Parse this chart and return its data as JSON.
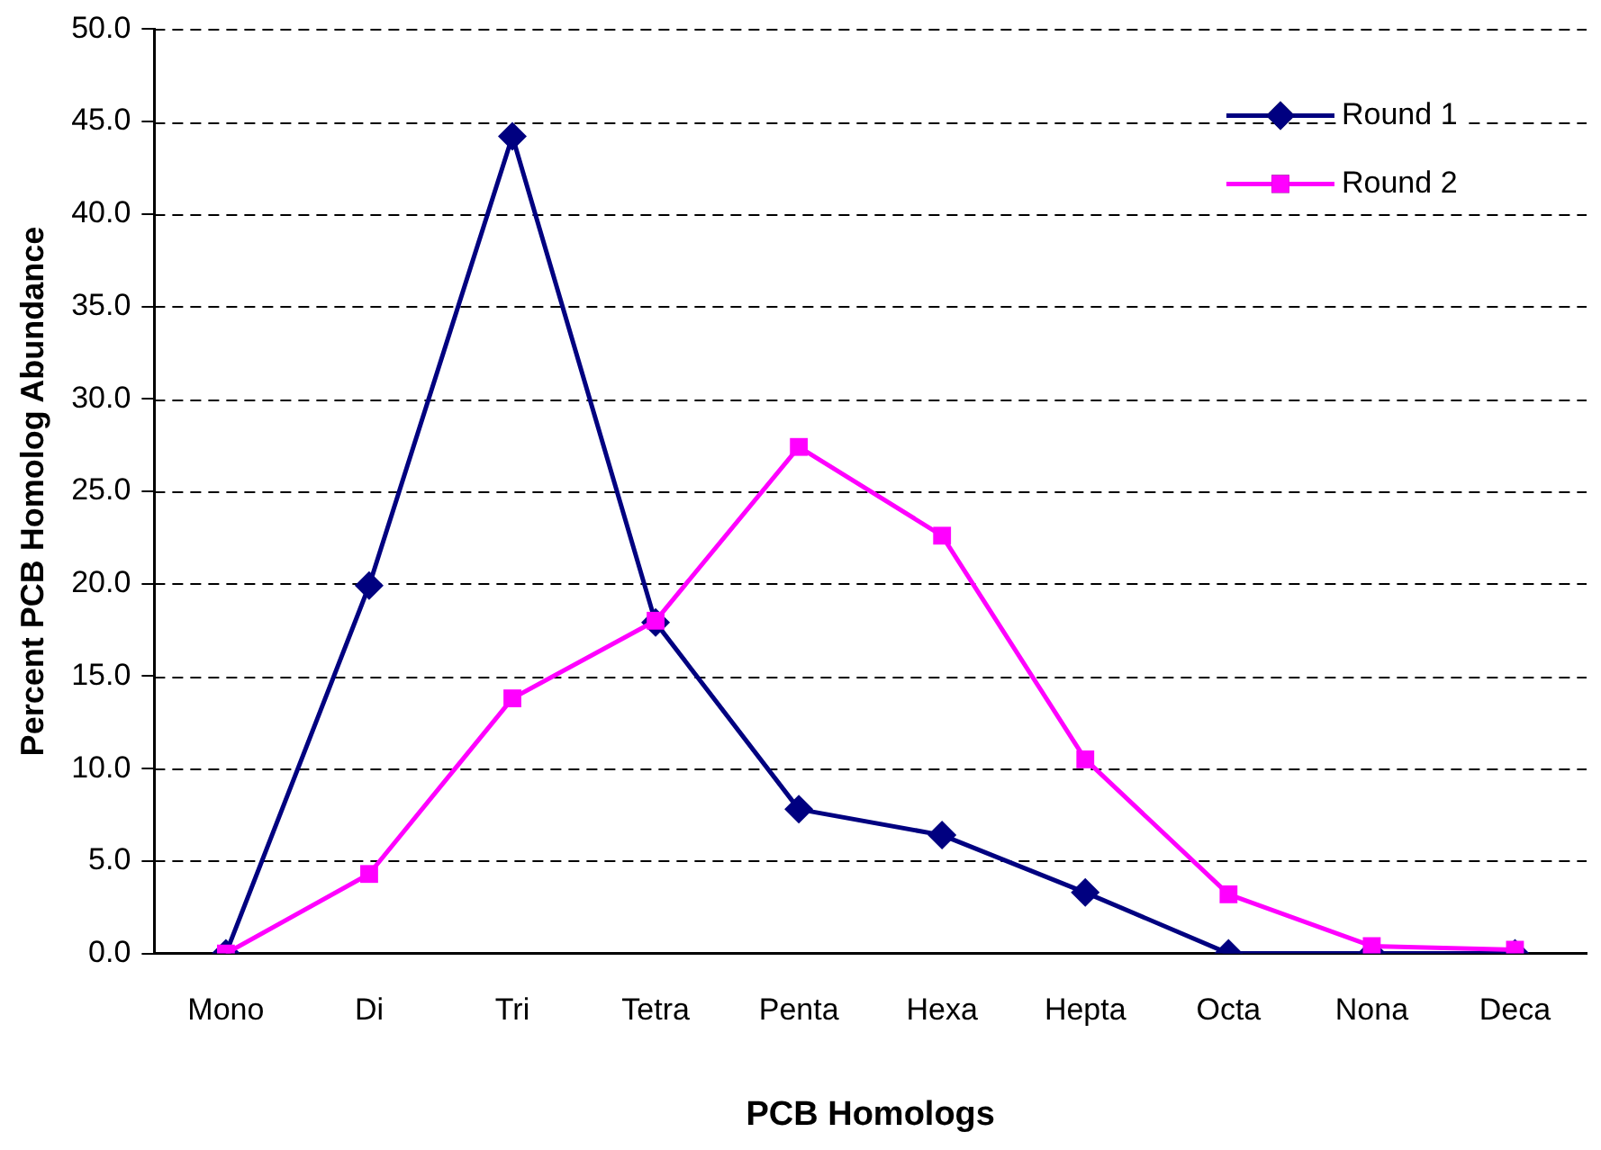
{
  "chart_data": {
    "type": "line",
    "xlabel": "PCB Homologs",
    "ylabel": "Percent PCB Homolog Abundance",
    "categories": [
      "Mono",
      "Di",
      "Tri",
      "Tetra",
      "Penta",
      "Hexa",
      "Hepta",
      "Octa",
      "Nona",
      "Deca"
    ],
    "series": [
      {
        "name": "Round 1",
        "color": "#000080",
        "marker": "diamond",
        "values": [
          0,
          19.9,
          44.2,
          17.9,
          7.8,
          6.4,
          3.3,
          0,
          0,
          0
        ]
      },
      {
        "name": "Round 2",
        "color": "#ff00ff",
        "marker": "square",
        "values": [
          0,
          4.3,
          13.8,
          18.0,
          27.4,
          22.6,
          10.5,
          3.2,
          0.4,
          0.2
        ]
      }
    ],
    "ylim": [
      0,
      50
    ],
    "yticks": [
      {
        "value": 0,
        "label": "0.0"
      },
      {
        "value": 5,
        "label": "5.0"
      },
      {
        "value": 10,
        "label": "10.0"
      },
      {
        "value": 15,
        "label": "15.0"
      },
      {
        "value": 20,
        "label": "20.0"
      },
      {
        "value": 25,
        "label": "25.0"
      },
      {
        "value": 30,
        "label": "30.0"
      },
      {
        "value": 35,
        "label": "35.0"
      },
      {
        "value": 40,
        "label": "40.0"
      },
      {
        "value": 45,
        "label": "45.0"
      },
      {
        "value": 50,
        "label": "50.0"
      }
    ],
    "grid": "y",
    "legend": "top right",
    "line_style": "solid"
  }
}
